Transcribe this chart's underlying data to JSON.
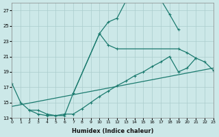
{
  "bg_color": "#cce8e8",
  "grid_color": "#aacccc",
  "line_color": "#1a7a6e",
  "xlabel": "Humidex (Indice chaleur)",
  "xlim": [
    0,
    23
  ],
  "ylim": [
    13,
    28
  ],
  "yticks": [
    13,
    15,
    17,
    19,
    21,
    23,
    25,
    27
  ],
  "curve1_x": [
    0,
    1,
    2,
    3,
    4,
    5,
    6,
    7,
    10,
    11,
    12,
    13,
    14,
    15,
    16,
    17,
    18,
    19
  ],
  "curve1_y": [
    17.5,
    15.0,
    14.0,
    14.0,
    13.5,
    13.3,
    13.3,
    16.2,
    24.0,
    25.5,
    26.0,
    28.2,
    28.5,
    28.5,
    28.5,
    28.4,
    26.5,
    24.5
  ],
  "curve2_x": [
    7,
    10,
    11,
    12,
    19,
    20,
    21
  ],
  "curve2_y": [
    16.2,
    24.0,
    22.5,
    22.0,
    22.0,
    21.5,
    20.8
  ],
  "curve3_x": [
    2,
    3,
    4,
    5,
    6,
    7,
    8,
    9,
    10,
    11,
    12,
    13,
    14,
    15,
    16,
    17,
    18,
    19,
    20,
    21,
    22,
    23
  ],
  "curve3_y": [
    14.0,
    13.5,
    13.3,
    13.3,
    13.5,
    13.5,
    14.2,
    15.0,
    15.8,
    16.5,
    17.2,
    17.8,
    18.5,
    19.0,
    19.7,
    20.3,
    21.0,
    19.0,
    19.5,
    20.8,
    20.3,
    19.2
  ],
  "line_x": [
    0,
    23
  ],
  "line_y": [
    14.5,
    19.5
  ]
}
